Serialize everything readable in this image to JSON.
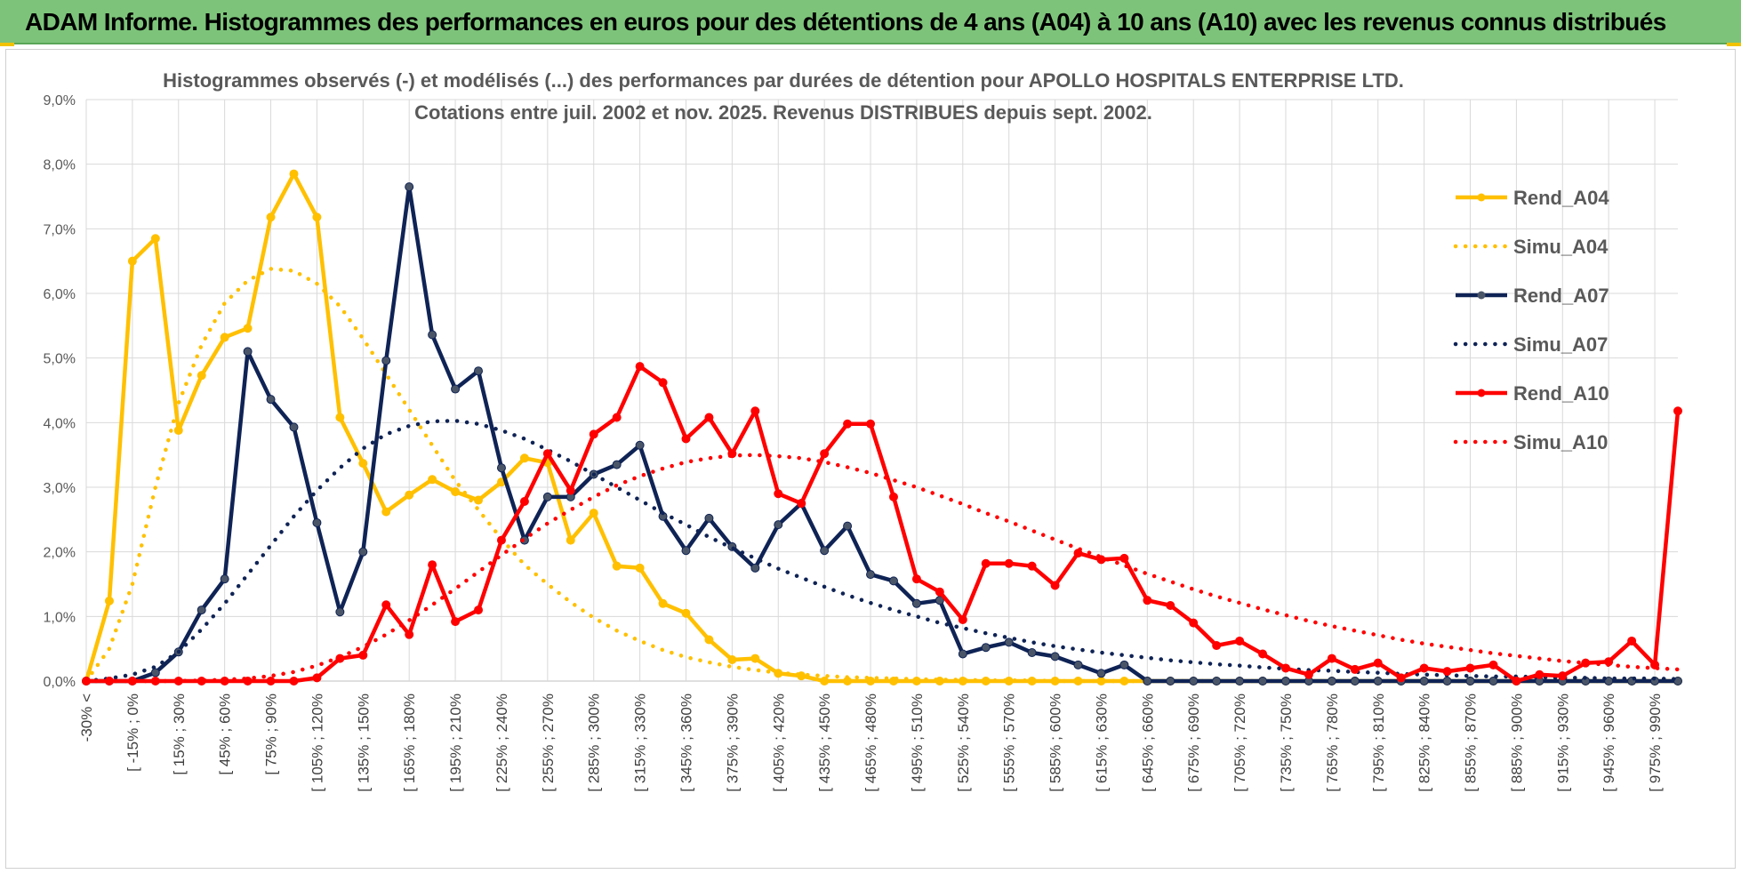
{
  "banner": {
    "title": "ADAM Informe. Histogrammes des performances en euros pour des détentions de 4 ans (A04) à 10 ans (A10) avec les revenus connus distribués"
  },
  "colors": {
    "banner_bg": "#7dc47a",
    "a04": "#ffc000",
    "a07": "#0f2355",
    "a10": "#ff0000",
    "grid": "#d9d9d9"
  },
  "chart_data": {
    "type": "line",
    "title_line1": "Histogrammes observés (-) et modélisés (...)  des performances par durées de détention pour APOLLO HOSPITALS ENTERPRISE LTD.",
    "title_line2": "Cotations entre juil. 2002 et nov. 2025. Revenus DISTRIBUES depuis sept. 2002.",
    "ylim": [
      0,
      9
    ],
    "y_ticks": [
      "0,0%",
      "1,0%",
      "2,0%",
      "3,0%",
      "4,0%",
      "5,0%",
      "6,0%",
      "7,0%",
      "8,0%",
      "9,0%"
    ],
    "x_tick_labels": [
      "-30% <",
      "[ -15% ; 0%",
      "[ 15% ; 30%",
      "[ 45% ; 60%",
      "[ 75% ; 90%",
      "[ 105% ; 120%",
      "[ 135% ; 150%",
      "[ 165% ; 180%",
      "[ 195% ; 210%",
      "[ 225% ; 240%",
      "[ 255% ; 270%",
      "[ 285% ; 300%",
      "[ 315% ; 330%",
      "[ 345% ; 360%",
      "[ 375% ; 390%",
      "[ 405% ; 420%",
      "[ 435% ; 450%",
      "[ 465% ; 480%",
      "[ 495% ; 510%",
      "[ 525% ; 540%",
      "[ 555% ; 570%",
      "[ 585% ; 600%",
      "[ 615% ; 630%",
      "[ 645% ; 660%",
      "[ 675% ; 690%",
      "[ 705% ; 720%",
      "[ 735% ; 750%",
      "[ 765% ; 780%",
      "[ 795% ; 810%",
      "[ 825% ; 840%",
      "[ 855% ; 870%",
      "[ 885% ; 900%",
      "[ 915% ; 930%",
      "[ 945% ; 960%",
      "[ 975% ; 990%"
    ],
    "n_points": 70,
    "legend_position": "right",
    "series": [
      {
        "name": "Rend_A04",
        "style": "solid",
        "markers": true,
        "color": "#ffc000",
        "values": [
          0.0,
          1.24,
          6.5,
          6.85,
          3.88,
          4.73,
          5.32,
          5.46,
          7.18,
          7.85,
          7.18,
          4.08,
          3.37,
          2.62,
          2.88,
          3.12,
          2.93,
          2.8,
          3.08,
          3.45,
          3.38,
          2.18,
          2.6,
          1.78,
          1.75,
          1.2,
          1.05,
          0.64,
          0.33,
          0.35,
          0.12,
          0.08,
          0.0,
          0.0,
          0.0,
          0.0,
          0.0,
          0.0,
          0.0,
          0.0,
          0.0,
          0.0,
          0.0,
          0.0,
          0.0,
          0.0,
          0.0,
          0.0,
          0.0,
          0.0,
          0.0,
          0.0,
          0.0,
          0.0,
          0.0,
          0.0,
          0.0,
          0.0,
          0.0,
          0.0,
          0.0,
          0.0,
          0.0,
          0.0,
          0.0,
          0.0,
          0.0,
          0.0,
          0.0,
          0.0
        ]
      },
      {
        "name": "Simu_A04",
        "style": "dotted",
        "markers": false,
        "color": "#ffc000",
        "values": [
          0.0,
          0.5,
          1.5,
          3.0,
          4.3,
          5.2,
          5.85,
          6.2,
          6.38,
          6.35,
          6.15,
          5.8,
          5.3,
          4.75,
          4.2,
          3.65,
          3.1,
          2.65,
          2.2,
          1.8,
          1.5,
          1.22,
          0.98,
          0.78,
          0.62,
          0.48,
          0.37,
          0.29,
          0.22,
          0.17,
          0.13,
          0.1,
          0.08,
          0.06,
          0.05,
          0.04,
          0.03,
          0.02,
          0.02,
          0.01,
          0.01,
          0.01,
          0.0,
          0.0,
          0.0,
          0.0,
          0.0,
          0.0,
          0.0,
          0.0,
          0.0,
          0.0,
          0.0,
          0.0,
          0.0,
          0.0,
          0.0,
          0.0,
          0.0,
          0.0,
          0.0,
          0.0,
          0.0,
          0.0,
          0.0,
          0.0,
          0.0,
          0.0,
          0.0,
          0.0
        ]
      },
      {
        "name": "Rend_A07",
        "style": "solid",
        "markers": true,
        "color": "#0f2355",
        "values": [
          0.0,
          0.0,
          0.0,
          0.13,
          0.45,
          1.1,
          1.58,
          5.1,
          4.36,
          3.93,
          2.45,
          1.07,
          2.0,
          4.96,
          7.65,
          5.36,
          4.52,
          4.8,
          3.3,
          2.18,
          2.85,
          2.85,
          3.2,
          3.35,
          3.65,
          2.55,
          2.02,
          2.52,
          2.08,
          1.75,
          2.42,
          2.75,
          2.02,
          2.4,
          1.65,
          1.55,
          1.2,
          1.25,
          0.42,
          0.52,
          0.6,
          0.44,
          0.38,
          0.25,
          0.12,
          0.25,
          0.0,
          0.0,
          0.0,
          0.0,
          0.0,
          0.0,
          0.0,
          0.0,
          0.0,
          0.0,
          0.0,
          0.0,
          0.0,
          0.0,
          0.0,
          0.0,
          0.0,
          0.0,
          0.0,
          0.0,
          0.0,
          0.0,
          0.0,
          0.0
        ]
      },
      {
        "name": "Simu_A07",
        "style": "dotted",
        "markers": false,
        "color": "#0f2355",
        "values": [
          0.0,
          0.04,
          0.1,
          0.22,
          0.45,
          0.8,
          1.2,
          1.65,
          2.1,
          2.55,
          2.95,
          3.3,
          3.6,
          3.82,
          3.95,
          4.02,
          4.03,
          3.98,
          3.88,
          3.75,
          3.58,
          3.4,
          3.2,
          3.0,
          2.8,
          2.6,
          2.42,
          2.23,
          2.06,
          1.9,
          1.74,
          1.6,
          1.46,
          1.33,
          1.21,
          1.1,
          1.0,
          0.9,
          0.82,
          0.74,
          0.67,
          0.6,
          0.54,
          0.49,
          0.44,
          0.4,
          0.36,
          0.32,
          0.29,
          0.26,
          0.24,
          0.21,
          0.19,
          0.17,
          0.16,
          0.14,
          0.13,
          0.11,
          0.1,
          0.09,
          0.08,
          0.07,
          0.07,
          0.06,
          0.05,
          0.05,
          0.04,
          0.04,
          0.04,
          0.03
        ]
      },
      {
        "name": "Rend_A10",
        "style": "solid",
        "markers": true,
        "color": "#ff0000",
        "values": [
          0.0,
          0.0,
          0.0,
          0.0,
          0.0,
          0.0,
          0.0,
          0.0,
          0.0,
          0.0,
          0.05,
          0.35,
          0.4,
          1.18,
          0.72,
          1.8,
          0.92,
          1.1,
          2.18,
          2.78,
          3.52,
          2.95,
          3.82,
          4.08,
          4.87,
          4.62,
          3.75,
          4.08,
          3.52,
          4.18,
          2.9,
          2.75,
          3.52,
          3.98,
          3.98,
          2.85,
          1.58,
          1.38,
          0.95,
          1.82,
          1.82,
          1.78,
          1.48,
          1.98,
          1.88,
          1.9,
          1.25,
          1.17,
          0.9,
          0.55,
          0.62,
          0.42,
          0.2,
          0.1,
          0.35,
          0.18,
          0.28,
          0.05,
          0.2,
          0.15,
          0.2,
          0.25,
          0.0,
          0.1,
          0.08,
          0.28,
          0.3,
          0.62,
          0.25,
          4.18
        ]
      },
      {
        "name": "Simu_A10",
        "style": "dotted",
        "markers": false,
        "color": "#ff0000",
        "values": [
          0.0,
          0.0,
          0.0,
          0.0,
          0.0,
          0.01,
          0.02,
          0.04,
          0.08,
          0.14,
          0.24,
          0.37,
          0.53,
          0.72,
          0.94,
          1.18,
          1.43,
          1.69,
          1.95,
          2.2,
          2.44,
          2.65,
          2.85,
          3.03,
          3.17,
          3.29,
          3.39,
          3.45,
          3.49,
          3.5,
          3.48,
          3.45,
          3.39,
          3.31,
          3.22,
          3.11,
          3.0,
          2.87,
          2.74,
          2.6,
          2.47,
          2.33,
          2.19,
          2.05,
          1.92,
          1.79,
          1.66,
          1.54,
          1.42,
          1.31,
          1.21,
          1.11,
          1.02,
          0.93,
          0.85,
          0.78,
          0.71,
          0.64,
          0.58,
          0.53,
          0.48,
          0.43,
          0.39,
          0.35,
          0.31,
          0.28,
          0.25,
          0.22,
          0.2,
          0.18
        ]
      }
    ]
  }
}
